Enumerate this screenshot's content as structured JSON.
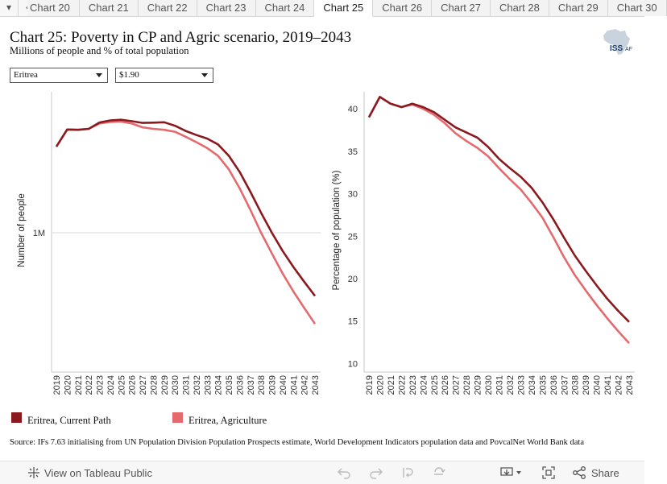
{
  "tabs": {
    "items": [
      "Chart 20",
      "Chart 21",
      "Chart 22",
      "Chart 23",
      "Chart 24",
      "Chart 25",
      "Chart 26",
      "Chart 27",
      "Chart 28",
      "Chart 29",
      "Chart 30"
    ],
    "active_index": 5
  },
  "header": {
    "title": "Chart 25: Poverty in CP and Agric scenario, 2019–2043",
    "subtitle": "Millions of people and % of total population",
    "logo_text": "ISS AFRICA"
  },
  "filters": {
    "country": "Eritrea",
    "poverty_line": "$1.90"
  },
  "legend": {
    "items": [
      {
        "label": "Eritrea, Current Path",
        "color": "#8b1a1f"
      },
      {
        "label": "Eritrea, Agriculture",
        "color": "#e46a6e"
      }
    ]
  },
  "source": "Source: IFs 7.63 initialising from UN Population Division Population Prospects estimate, World Development Indicators population data and PovcalNet World Bank data",
  "toolbar": {
    "view_label": "View on Tableau Public",
    "share_label": "Share"
  },
  "chart_data": [
    {
      "type": "line",
      "ylabel": "Number of people",
      "yscale": "log",
      "yticks": [
        {
          "value": 1000000,
          "label": "1M"
        }
      ],
      "ylim": [
        530000,
        1900000
      ],
      "grid": true,
      "x": [
        2019,
        2020,
        2021,
        2022,
        2023,
        2024,
        2025,
        2026,
        2027,
        2028,
        2029,
        2030,
        2031,
        2032,
        2033,
        2034,
        2035,
        2036,
        2037,
        2038,
        2039,
        2040,
        2041,
        2042,
        2043
      ],
      "series": [
        {
          "name": "Eritrea, Current Path",
          "color": "#8b1a1f",
          "values": [
            1480000,
            1600000,
            1598000,
            1605000,
            1652000,
            1668000,
            1673000,
            1662000,
            1649000,
            1651000,
            1654000,
            1628000,
            1590000,
            1560000,
            1535000,
            1495000,
            1420000,
            1320000,
            1205000,
            1095000,
            1000000,
            920000,
            855000,
            800000,
            750000
          ]
        },
        {
          "name": "Eritrea, Agriculture",
          "color": "#e46a6e",
          "values": [
            1480000,
            1600000,
            1598000,
            1605000,
            1645000,
            1656000,
            1659000,
            1644000,
            1616000,
            1605000,
            1598000,
            1584000,
            1548000,
            1510000,
            1470000,
            1420000,
            1335000,
            1225000,
            1110000,
            1000000,
            910000,
            830000,
            765000,
            710000,
            660000
          ]
        }
      ]
    },
    {
      "type": "line",
      "ylabel": "Percentage of population (%)",
      "yticks": [
        10,
        15,
        20,
        25,
        30,
        35,
        40
      ],
      "ylim": [
        9,
        42
      ],
      "grid": false,
      "x": [
        2019,
        2020,
        2021,
        2022,
        2023,
        2024,
        2025,
        2026,
        2027,
        2028,
        2029,
        2030,
        2031,
        2032,
        2033,
        2034,
        2035,
        2036,
        2037,
        2038,
        2039,
        2040,
        2041,
        2042,
        2043
      ],
      "series": [
        {
          "name": "Eritrea, Current Path",
          "color": "#8b1a1f",
          "values": [
            39.0,
            41.4,
            40.6,
            40.2,
            40.6,
            40.2,
            39.6,
            38.7,
            37.8,
            37.2,
            36.6,
            35.5,
            34.1,
            33.0,
            32.0,
            30.7,
            29.0,
            27.0,
            24.8,
            22.7,
            20.9,
            19.2,
            17.6,
            16.2,
            14.9
          ]
        },
        {
          "name": "Eritrea, Agriculture",
          "color": "#e46a6e",
          "values": [
            39.0,
            41.4,
            40.6,
            40.2,
            40.5,
            40.0,
            39.3,
            38.3,
            37.1,
            36.2,
            35.4,
            34.4,
            33.0,
            31.7,
            30.5,
            28.9,
            27.2,
            24.9,
            22.5,
            20.4,
            18.6,
            16.9,
            15.3,
            13.8,
            12.4
          ]
        }
      ]
    }
  ]
}
